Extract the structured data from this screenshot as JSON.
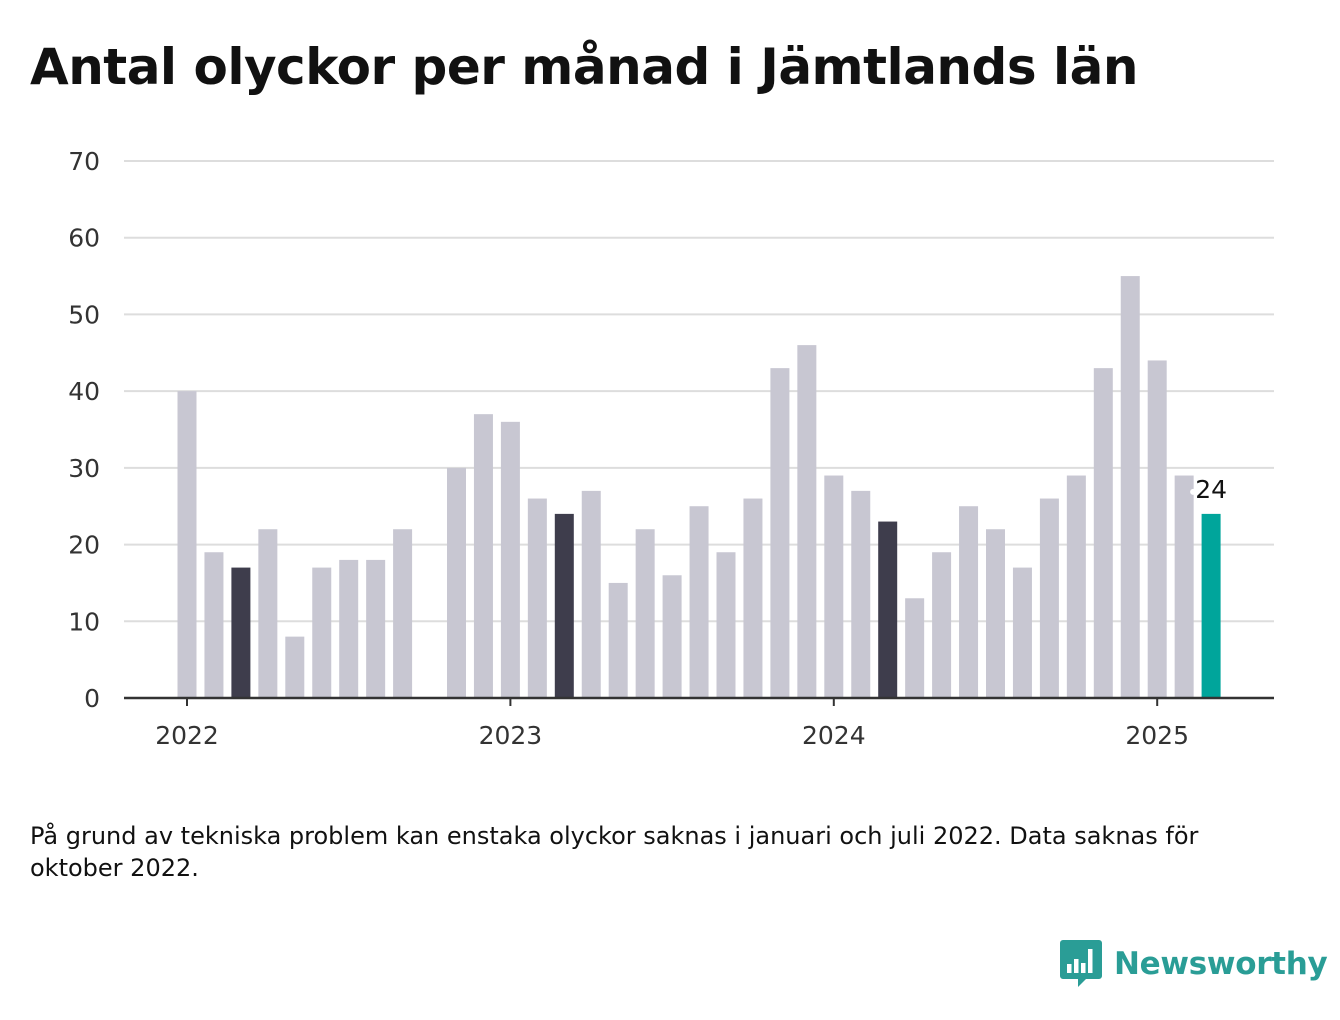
{
  "title": "Antal olyckor per månad i Jämtlands län",
  "note": "På grund av tekniska problem kan enstaka olyckor saknas i januari och juli 2022. Data saknas för oktober 2022.",
  "brand": {
    "name": "Newsworthy",
    "color": "#2a9d96",
    "icon": "newsworthy-logo-icon"
  },
  "colors": {
    "bar": "#c8c7d2",
    "highlight": "#3e3d4c",
    "latest": "#00a59b",
    "grid": "#dddddd",
    "axis": "#333333"
  },
  "chart_data": {
    "type": "bar",
    "title": "Antal olyckor per månad i Jämtlands län",
    "xlabel": "",
    "ylabel": "",
    "ylim": [
      0,
      70
    ],
    "yticks": [
      0,
      10,
      20,
      30,
      40,
      50,
      60,
      70
    ],
    "xticks": [
      {
        "label": "2022",
        "x": "2022-01"
      },
      {
        "label": "2023",
        "x": "2023-01"
      },
      {
        "label": "2024",
        "x": "2024-01"
      },
      {
        "label": "2025",
        "x": "2025-01"
      }
    ],
    "grid": true,
    "legend": "none",
    "annotation": {
      "x": "2025-03",
      "text": "24"
    },
    "x": [
      "2022-01",
      "2022-02",
      "2022-03",
      "2022-04",
      "2022-05",
      "2022-06",
      "2022-07",
      "2022-08",
      "2022-09",
      "2022-10",
      "2022-11",
      "2022-12",
      "2023-01",
      "2023-02",
      "2023-03",
      "2023-04",
      "2023-05",
      "2023-06",
      "2023-07",
      "2023-08",
      "2023-09",
      "2023-10",
      "2023-11",
      "2023-12",
      "2024-01",
      "2024-02",
      "2024-03",
      "2024-04",
      "2024-05",
      "2024-06",
      "2024-07",
      "2024-08",
      "2024-09",
      "2024-10",
      "2024-11",
      "2024-12",
      "2025-01",
      "2025-02",
      "2025-03"
    ],
    "values": [
      40,
      19,
      17,
      22,
      8,
      17,
      18,
      18,
      22,
      null,
      30,
      37,
      36,
      26,
      24,
      27,
      15,
      22,
      16,
      25,
      19,
      26,
      43,
      46,
      29,
      27,
      23,
      13,
      19,
      25,
      22,
      17,
      26,
      29,
      43,
      55,
      44,
      29,
      24
    ],
    "highlight": [
      "2022-03",
      "2023-03",
      "2024-03"
    ],
    "latest": "2025-03"
  }
}
